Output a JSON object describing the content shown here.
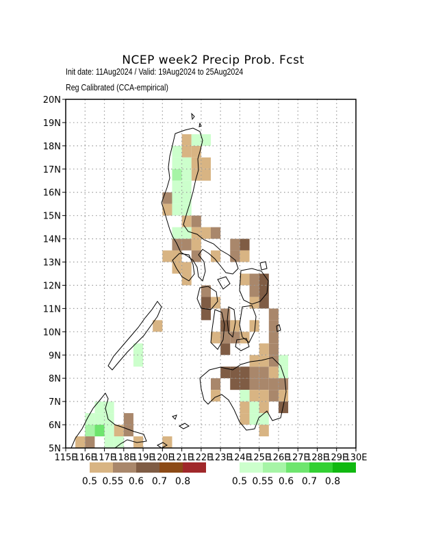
{
  "header": {
    "title": "NCEP week2 Precip Prob. Fcst",
    "subtitle_line1": "Init date: 11Aug2024 / Valid: 19Aug2024 to 25Aug2024",
    "subtitle_line2": "Reg Calibrated (CCA-empirical)"
  },
  "map": {
    "lon_range": [
      115,
      130
    ],
    "lat_range": [
      5,
      20
    ],
    "grid": true,
    "lat_labels": [
      "5N",
      "6N",
      "7N",
      "8N",
      "9N",
      "10N",
      "11N",
      "12N",
      "13N",
      "14N",
      "15N",
      "16N",
      "17N",
      "18N",
      "19N",
      "20N"
    ],
    "lon_labels": [
      "115E",
      "116E",
      "117E",
      "118E",
      "119E",
      "120E",
      "121E",
      "122E",
      "123E",
      "124E",
      "125E",
      "126E",
      "127E",
      "128E",
      "129E",
      "130E"
    ]
  },
  "legend": {
    "dry": {
      "colors": [
        "#d8b483",
        "#a9876b",
        "#7f5c44",
        "#8c4a16",
        "#a0282a"
      ],
      "labels": [
        "0.5",
        "0.55",
        "0.6",
        "0.7",
        "0.8"
      ]
    },
    "wet": {
      "colors": [
        "#ccffcc",
        "#a6f4a6",
        "#6ee56e",
        "#32d032",
        "#10b810"
      ],
      "labels": [
        "0.5",
        "0.55",
        "0.6",
        "0.7",
        "0.8"
      ]
    }
  },
  "chart_data": {
    "type": "heatmap",
    "cell_size_deg": 0.5,
    "categories_note": "cat key = legend bin: d1..d3 below-normal prob (tan→brown), w1..w3 above-normal prob (light→green)",
    "cells": [
      {
        "lon": 121.0,
        "lat": 17.5,
        "cat": "d1"
      },
      {
        "lon": 121.5,
        "lat": 17.5,
        "cat": "d1"
      },
      {
        "lon": 121.0,
        "lat": 18.0,
        "cat": "d1"
      },
      {
        "lon": 121.5,
        "lat": 18.0,
        "cat": "w1"
      },
      {
        "lon": 122.0,
        "lat": 18.0,
        "cat": "w1"
      },
      {
        "lon": 120.5,
        "lat": 17.5,
        "cat": "w1"
      },
      {
        "lon": 120.5,
        "lat": 17.0,
        "cat": "w1"
      },
      {
        "lon": 121.0,
        "lat": 17.0,
        "cat": "w1"
      },
      {
        "lon": 121.5,
        "lat": 17.0,
        "cat": "d1"
      },
      {
        "lon": 122.0,
        "lat": 17.0,
        "cat": "d1"
      },
      {
        "lon": 121.5,
        "lat": 16.5,
        "cat": "d1"
      },
      {
        "lon": 122.0,
        "lat": 16.5,
        "cat": "d1"
      },
      {
        "lon": 120.5,
        "lat": 16.5,
        "cat": "w2"
      },
      {
        "lon": 121.0,
        "lat": 16.5,
        "cat": "w1"
      },
      {
        "lon": 120.5,
        "lat": 16.0,
        "cat": "w1"
      },
      {
        "lon": 121.0,
        "lat": 16.0,
        "cat": "w1"
      },
      {
        "lon": 120.5,
        "lat": 15.5,
        "cat": "w1"
      },
      {
        "lon": 121.0,
        "lat": 15.5,
        "cat": "w1"
      },
      {
        "lon": 120.0,
        "lat": 15.5,
        "cat": "d2"
      },
      {
        "lon": 120.0,
        "lat": 15.0,
        "cat": "d1"
      },
      {
        "lon": 120.5,
        "lat": 15.0,
        "cat": "w1"
      },
      {
        "lon": 121.0,
        "lat": 15.0,
        "cat": "w1"
      },
      {
        "lon": 121.0,
        "lat": 14.5,
        "cat": "d1"
      },
      {
        "lon": 121.5,
        "lat": 14.5,
        "cat": "d2"
      },
      {
        "lon": 120.5,
        "lat": 14.0,
        "cat": "w1"
      },
      {
        "lon": 121.0,
        "lat": 14.0,
        "cat": "w1"
      },
      {
        "lon": 121.5,
        "lat": 14.0,
        "cat": "d1"
      },
      {
        "lon": 120.5,
        "lat": 13.5,
        "cat": "d2"
      },
      {
        "lon": 121.0,
        "lat": 13.5,
        "cat": "d2"
      },
      {
        "lon": 121.5,
        "lat": 13.5,
        "cat": "d1"
      },
      {
        "lon": 122.0,
        "lat": 14.0,
        "cat": "d1"
      },
      {
        "lon": 122.5,
        "lat": 14.0,
        "cat": "d2"
      },
      {
        "lon": 120.0,
        "lat": 13.0,
        "cat": "d1"
      },
      {
        "lon": 120.5,
        "lat": 13.0,
        "cat": "d1"
      },
      {
        "lon": 121.5,
        "lat": 13.0,
        "cat": "d2"
      },
      {
        "lon": 122.5,
        "lat": 13.0,
        "cat": "d1"
      },
      {
        "lon": 123.5,
        "lat": 13.5,
        "cat": "d2"
      },
      {
        "lon": 124.0,
        "lat": 13.5,
        "cat": "d3"
      },
      {
        "lon": 123.5,
        "lat": 13.0,
        "cat": "d2"
      },
      {
        "lon": 124.0,
        "lat": 13.0,
        "cat": "d1"
      },
      {
        "lon": 120.5,
        "lat": 12.5,
        "cat": "d1"
      },
      {
        "lon": 121.0,
        "lat": 12.5,
        "cat": "d1"
      },
      {
        "lon": 121.0,
        "lat": 12.0,
        "cat": "d1"
      },
      {
        "lon": 124.5,
        "lat": 12.0,
        "cat": "d2"
      },
      {
        "lon": 125.0,
        "lat": 12.0,
        "cat": "d3"
      },
      {
        "lon": 124.0,
        "lat": 12.0,
        "cat": "d1"
      },
      {
        "lon": 124.5,
        "lat": 11.5,
        "cat": "d2"
      },
      {
        "lon": 125.0,
        "lat": 11.5,
        "cat": "d3"
      },
      {
        "lon": 124.5,
        "lat": 11.0,
        "cat": "d1"
      },
      {
        "lon": 125.0,
        "lat": 11.0,
        "cat": "d3"
      },
      {
        "lon": 122.0,
        "lat": 11.5,
        "cat": "d2"
      },
      {
        "lon": 122.0,
        "lat": 11.0,
        "cat": "d3"
      },
      {
        "lon": 122.0,
        "lat": 10.5,
        "cat": "d3"
      },
      {
        "lon": 122.5,
        "lat": 11.0,
        "cat": "d1"
      },
      {
        "lon": 123.0,
        "lat": 10.5,
        "cat": "d2"
      },
      {
        "lon": 123.0,
        "lat": 10.0,
        "cat": "d3"
      },
      {
        "lon": 123.5,
        "lat": 10.0,
        "cat": "d1"
      },
      {
        "lon": 123.0,
        "lat": 9.5,
        "cat": "d2"
      },
      {
        "lon": 122.5,
        "lat": 9.5,
        "cat": "d1"
      },
      {
        "lon": 123.0,
        "lat": 9.0,
        "cat": "d3"
      },
      {
        "lon": 123.5,
        "lat": 9.5,
        "cat": "d2"
      },
      {
        "lon": 124.0,
        "lat": 9.5,
        "cat": "d1"
      },
      {
        "lon": 125.5,
        "lat": 10.5,
        "cat": "d2"
      },
      {
        "lon": 125.5,
        "lat": 10.0,
        "cat": "d2"
      },
      {
        "lon": 125.5,
        "lat": 9.5,
        "cat": "d2"
      },
      {
        "lon": 124.5,
        "lat": 10.0,
        "cat": "d1"
      },
      {
        "lon": 119.5,
        "lat": 10.0,
        "cat": "d1"
      },
      {
        "lon": 118.5,
        "lat": 8.5,
        "cat": "w1"
      },
      {
        "lon": 118.5,
        "lat": 9.0,
        "cat": "w1"
      },
      {
        "lon": 125.5,
        "lat": 9.0,
        "cat": "d2"
      },
      {
        "lon": 125.0,
        "lat": 9.0,
        "cat": "d1"
      },
      {
        "lon": 123.0,
        "lat": 8.0,
        "cat": "d3"
      },
      {
        "lon": 123.5,
        "lat": 8.0,
        "cat": "d3"
      },
      {
        "lon": 124.0,
        "lat": 8.0,
        "cat": "d3"
      },
      {
        "lon": 124.5,
        "lat": 8.0,
        "cat": "d2"
      },
      {
        "lon": 125.0,
        "lat": 8.0,
        "cat": "d2"
      },
      {
        "lon": 125.5,
        "lat": 8.0,
        "cat": "d1"
      },
      {
        "lon": 126.0,
        "lat": 8.0,
        "cat": "w1"
      },
      {
        "lon": 126.0,
        "lat": 8.5,
        "cat": "w1"
      },
      {
        "lon": 125.5,
        "lat": 8.5,
        "cat": "d2"
      },
      {
        "lon": 124.5,
        "lat": 8.5,
        "cat": "d1"
      },
      {
        "lon": 125.0,
        "lat": 8.5,
        "cat": "d1"
      },
      {
        "lon": 123.5,
        "lat": 7.5,
        "cat": "d3"
      },
      {
        "lon": 124.0,
        "lat": 7.5,
        "cat": "d3"
      },
      {
        "lon": 124.5,
        "lat": 7.5,
        "cat": "d2"
      },
      {
        "lon": 125.0,
        "lat": 7.5,
        "cat": "d2"
      },
      {
        "lon": 125.5,
        "lat": 7.5,
        "cat": "d2"
      },
      {
        "lon": 126.0,
        "lat": 7.5,
        "cat": "d2"
      },
      {
        "lon": 122.5,
        "lat": 7.5,
        "cat": "d2"
      },
      {
        "lon": 122.5,
        "lat": 7.0,
        "cat": "d1"
      },
      {
        "lon": 124.0,
        "lat": 7.0,
        "cat": "w1"
      },
      {
        "lon": 124.5,
        "lat": 7.0,
        "cat": "d1"
      },
      {
        "lon": 125.0,
        "lat": 7.0,
        "cat": "d1"
      },
      {
        "lon": 125.5,
        "lat": 7.0,
        "cat": "d2"
      },
      {
        "lon": 126.0,
        "lat": 7.0,
        "cat": "d1"
      },
      {
        "lon": 126.0,
        "lat": 6.5,
        "cat": "d3"
      },
      {
        "lon": 124.0,
        "lat": 6.5,
        "cat": "d1"
      },
      {
        "lon": 124.5,
        "lat": 6.5,
        "cat": "w1"
      },
      {
        "lon": 125.0,
        "lat": 6.5,
        "cat": "d1"
      },
      {
        "lon": 124.0,
        "lat": 6.0,
        "cat": "d1"
      },
      {
        "lon": 124.5,
        "lat": 6.0,
        "cat": "w1"
      },
      {
        "lon": 125.0,
        "lat": 6.0,
        "cat": "w1"
      },
      {
        "lon": 125.0,
        "lat": 5.5,
        "cat": "d1"
      },
      {
        "lon": 116.5,
        "lat": 6.5,
        "cat": "w1"
      },
      {
        "lon": 117.0,
        "lat": 6.5,
        "cat": "w1"
      },
      {
        "lon": 116.0,
        "lat": 6.0,
        "cat": "w1"
      },
      {
        "lon": 116.5,
        "lat": 6.0,
        "cat": "w1"
      },
      {
        "lon": 117.0,
        "lat": 6.0,
        "cat": "w1"
      },
      {
        "lon": 116.0,
        "lat": 5.5,
        "cat": "w2"
      },
      {
        "lon": 116.5,
        "lat": 5.5,
        "cat": "w3"
      },
      {
        "lon": 117.0,
        "lat": 5.5,
        "cat": "w1"
      },
      {
        "lon": 117.5,
        "lat": 5.5,
        "cat": "d1"
      },
      {
        "lon": 118.0,
        "lat": 5.5,
        "cat": "d2"
      },
      {
        "lon": 118.0,
        "lat": 6.0,
        "cat": "d2"
      },
      {
        "lon": 115.5,
        "lat": 5.0,
        "cat": "d1"
      },
      {
        "lon": 116.0,
        "lat": 5.0,
        "cat": "d2"
      },
      {
        "lon": 117.0,
        "lat": 5.0,
        "cat": "w1"
      },
      {
        "lon": 117.5,
        "lat": 5.0,
        "cat": "w1"
      },
      {
        "lon": 118.5,
        "lat": 5.0,
        "cat": "d1"
      },
      {
        "lon": 120.0,
        "lat": 5.0,
        "cat": "d1"
      }
    ],
    "category_colors": {
      "d1": "#d8b483",
      "d2": "#a9876b",
      "d3": "#7f5c44",
      "w1": "#ccffcc",
      "w2": "#a6f4a6",
      "w3": "#6ee56e"
    }
  }
}
